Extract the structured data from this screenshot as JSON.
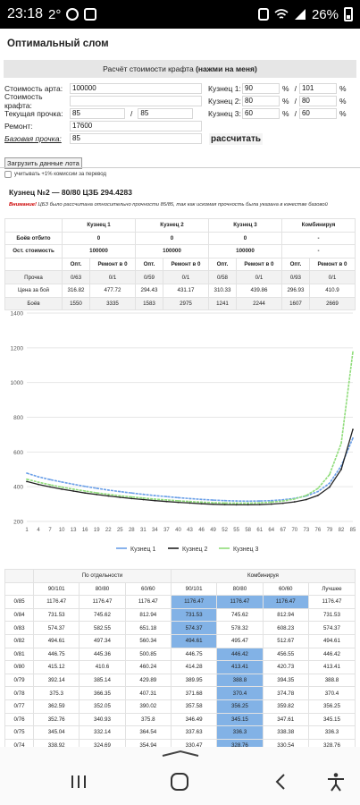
{
  "status": {
    "time": "23:18",
    "temp": "2°",
    "battery": "26%"
  },
  "page": {
    "title": "Оптимальный слом",
    "craft_header_prefix": "Расчёт стоимости крафта ",
    "craft_header_bold": "(нажми на меня)"
  },
  "form": {
    "art_cost_label": "Стоимость арта:",
    "art_cost_value": "100000",
    "craft_cost_label": "Стоимость крафта:",
    "craft_cost_value": "",
    "cur_dur_label": "Текущая прочка:",
    "cur_dur_value": "85",
    "cur_dur_sep": "/",
    "cur_dur_max": "85",
    "repair_label": "Ремонт:",
    "repair_value": "17600",
    "base_dur_label": "Базовая прочка:",
    "base_dur_value": "85",
    "smiths": [
      {
        "label": "Кузнец 1:",
        "v1": "90",
        "v2": "101"
      },
      {
        "label": "Кузнец 2:",
        "v1": "80",
        "v2": "80"
      },
      {
        "label": "Кузнец 3:",
        "v1": "60",
        "v2": "60"
      }
    ],
    "pct": "%",
    "slash": "/",
    "calc_button": "рассчитать",
    "load_button": "Загрузить данные лота",
    "commission_label": "учитывать +1% комиссии за перевод"
  },
  "result": {
    "title": "Кузнец №2 — 80/80 ЦЗБ 294.4283",
    "warn_bold": "Внимание!",
    "warn_text": " ЦБЗ было рассчитана относительно прочности 85/85, так как искомая прочность была указана в качестве базовой"
  },
  "summary": {
    "headers": [
      "Кузнец 1",
      "Кузнец 2",
      "Кузнец 3",
      "Комбинируя"
    ],
    "fights_label": "Боёв отбито",
    "fights": [
      "0",
      "0",
      "0",
      "-"
    ],
    "rem_label": "Ост. стоимость",
    "rem": [
      "100000",
      "100000",
      "100000",
      "-"
    ],
    "sub_opt": "Опт.",
    "sub_repair": "Ремонт в 0",
    "rows": [
      {
        "label": "Прочка",
        "cells": [
          "0/63",
          "0/1",
          "0/59",
          "0/1",
          "0/58",
          "0/1",
          "0/93",
          "0/1"
        ]
      },
      {
        "label": "Цена за бой",
        "cells": [
          "316.82",
          "477.72",
          "294.43",
          "431.17",
          "310.33",
          "439.86",
          "296.93",
          "410.9"
        ]
      },
      {
        "label": "Боёв",
        "cells": [
          "1550",
          "3335",
          "1583",
          "2975",
          "1241",
          "2244",
          "1607",
          "2669"
        ]
      }
    ]
  },
  "chart_data": {
    "type": "line",
    "title": "",
    "xlabel": "",
    "ylabel": "",
    "ylim": [
      200,
      1400
    ],
    "yticks": [
      200,
      400,
      600,
      800,
      1000,
      1200,
      1400
    ],
    "x": [
      1,
      4,
      7,
      10,
      13,
      16,
      19,
      22,
      25,
      28,
      31,
      34,
      37,
      40,
      43,
      46,
      49,
      52,
      55,
      58,
      61,
      64,
      67,
      70,
      73,
      76,
      79,
      82,
      85
    ],
    "xticks": [
      "1",
      "4",
      "7",
      "10",
      "13",
      "16",
      "19",
      "22",
      "25",
      "28",
      "31",
      "34",
      "37",
      "40",
      "43",
      "46",
      "49",
      "52",
      "55",
      "58",
      "61",
      "64",
      "67",
      "70",
      "73",
      "76",
      "79",
      "82",
      "85"
    ],
    "series": [
      {
        "name": "Кузнец 1",
        "color": "#6a9fe8",
        "values": [
          478,
          457,
          441,
          427,
          414,
          402,
          391,
          381,
          372,
          364,
          356,
          349,
          343,
          337,
          332,
          327,
          323,
          320,
          318,
          317,
          318,
          320,
          325,
          333,
          347,
          372,
          420,
          520,
          680
        ]
      },
      {
        "name": "Кузнец 2",
        "color": "#222222",
        "values": [
          430,
          413,
          399,
          386,
          375,
          364,
          355,
          347,
          339,
          332,
          326,
          320,
          315,
          310,
          306,
          302,
          299,
          297,
          296,
          296,
          297,
          300,
          305,
          313,
          326,
          350,
          398,
          500,
          730
        ]
      },
      {
        "name": "Кузнец 3",
        "color": "#8fdc7a",
        "values": [
          443,
          426,
          411,
          398,
          386,
          375,
          365,
          356,
          348,
          341,
          335,
          329,
          324,
          319,
          315,
          311,
          308,
          306,
          305,
          305,
          307,
          311,
          318,
          330,
          350,
          390,
          470,
          650,
          1176
        ]
      }
    ],
    "legend": "bottom"
  },
  "breakdown": {
    "group_sep": "По отдельности",
    "group_comb": "Комбинируя",
    "cols_sep": [
      "90/101",
      "80/80",
      "60/60"
    ],
    "cols_comb": [
      "90/101",
      "80/80",
      "60/60",
      "Лучшее"
    ],
    "rows": [
      {
        "dur": "0/85",
        "s": [
          "1176.47",
          "1176.47",
          "1176.47"
        ],
        "c": [
          "1176.47",
          "1176.47",
          "1176.47",
          "1176.47"
        ],
        "hl": [
          true,
          true,
          true
        ]
      },
      {
        "dur": "0/84",
        "s": [
          "731.53",
          "745.62",
          "812.94"
        ],
        "c": [
          "731.53",
          "745.62",
          "812.94",
          "731.53"
        ],
        "hl": [
          true,
          false,
          false
        ]
      },
      {
        "dur": "0/83",
        "s": [
          "574.37",
          "582.55",
          "651.18"
        ],
        "c": [
          "574.37",
          "578.32",
          "608.23",
          "574.37"
        ],
        "hl": [
          true,
          false,
          false
        ]
      },
      {
        "dur": "0/82",
        "s": [
          "494.61",
          "497.34",
          "560.34"
        ],
        "c": [
          "494.61",
          "495.47",
          "512.67",
          "494.61"
        ],
        "hl": [
          true,
          false,
          false
        ]
      },
      {
        "dur": "0/81",
        "s": [
          "446.75",
          "445.36",
          "500.85"
        ],
        "c": [
          "446.75",
          "446.42",
          "456.55",
          "446.42"
        ],
        "hl": [
          false,
          true,
          false
        ]
      },
      {
        "dur": "0/80",
        "s": [
          "415.12",
          "410.6",
          "460.24"
        ],
        "c": [
          "414.28",
          "413.41",
          "420.73",
          "413.41"
        ],
        "hl": [
          false,
          true,
          false
        ]
      },
      {
        "dur": "0/79",
        "s": [
          "392.14",
          "385.14",
          "429.89"
        ],
        "c": [
          "389.95",
          "388.8",
          "394.35",
          "388.8"
        ],
        "hl": [
          false,
          true,
          false
        ]
      },
      {
        "dur": "0/78",
        "s": [
          "375.3",
          "366.35",
          "407.31"
        ],
        "c": [
          "371.68",
          "370.4",
          "374.78",
          "370.4"
        ],
        "hl": [
          false,
          true,
          false
        ]
      },
      {
        "dur": "0/77",
        "s": [
          "362.59",
          "352.05",
          "390.02"
        ],
        "c": [
          "357.58",
          "356.25",
          "359.82",
          "356.25"
        ],
        "hl": [
          false,
          true,
          false
        ]
      },
      {
        "dur": "0/76",
        "s": [
          "352.76",
          "340.93",
          "375.8"
        ],
        "c": [
          "346.49",
          "345.15",
          "347.61",
          "345.15"
        ],
        "hl": [
          false,
          true,
          false
        ]
      },
      {
        "dur": "0/75",
        "s": [
          "345.04",
          "332.14",
          "364.54"
        ],
        "c": [
          "337.63",
          "336.3",
          "338.38",
          "336.3"
        ],
        "hl": [
          false,
          true,
          false
        ]
      },
      {
        "dur": "0/74",
        "s": [
          "338.92",
          "324.69",
          "354.94"
        ],
        "c": [
          "330.47",
          "328.76",
          "330.54",
          "328.76"
        ],
        "hl": [
          false,
          true,
          false
        ]
      }
    ]
  }
}
